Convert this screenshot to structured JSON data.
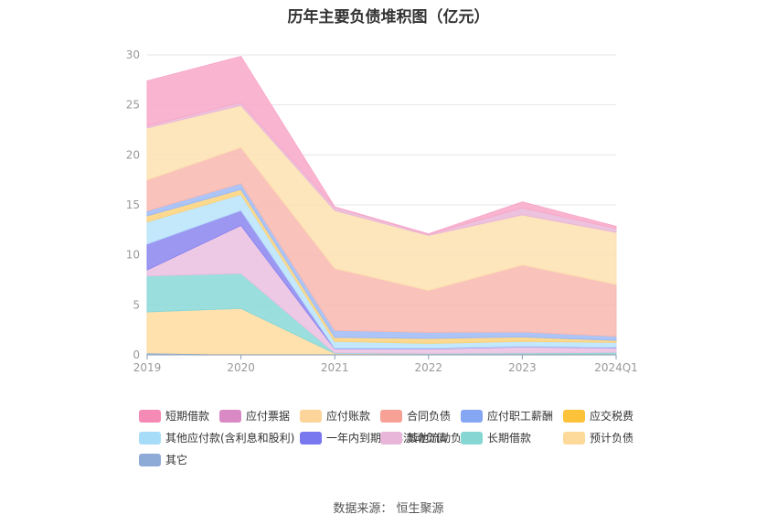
{
  "title": "历年主要负债堆积图（亿元）",
  "source": "数据来源：  恒生聚源",
  "chart_data": {
    "type": "area",
    "stacked": true,
    "categories": [
      "2019",
      "2020",
      "2021",
      "2022",
      "2023",
      "2024Q1"
    ],
    "y_ticks": [
      "0",
      "5",
      "10",
      "15",
      "20",
      "25",
      "30"
    ],
    "ylim": [
      0,
      30
    ],
    "grid": true,
    "legend_position": "bottom",
    "series": [
      {
        "name": "其它",
        "color": "#8eb1dc",
        "values": [
          0.2,
          0.05,
          0.05,
          0.05,
          0.05,
          0.05
        ]
      },
      {
        "name": "预计负债",
        "color": "#ffdca0",
        "values": [
          4.1,
          4.6,
          0.1,
          0.05,
          0.05,
          0.05
        ]
      },
      {
        "name": "长期借款",
        "color": "#8ad8d8",
        "values": [
          3.6,
          3.5,
          0.05,
          0.05,
          0.1,
          0.15
        ]
      },
      {
        "name": "其他流动负债",
        "color": "#ebbfe0",
        "values": [
          0.6,
          4.8,
          0.4,
          0.45,
          0.6,
          0.45
        ]
      },
      {
        "name": "一年内到期的非流动负债",
        "color": "#8b86f0",
        "values": [
          2.6,
          1.5,
          0.05,
          0.05,
          0.05,
          0.05
        ]
      },
      {
        "name": "其他应付款(含利息和股利)",
        "color": "#b9e3fa",
        "values": [
          2.2,
          1.6,
          0.7,
          0.5,
          0.5,
          0.5
        ]
      },
      {
        "name": "应交税费",
        "color": "#fbd27a",
        "values": [
          0.6,
          0.5,
          0.4,
          0.5,
          0.45,
          0.2
        ]
      },
      {
        "name": "应付职工薪酬",
        "color": "#9dbaf5",
        "values": [
          0.5,
          0.6,
          0.7,
          0.6,
          0.5,
          0.4
        ]
      },
      {
        "name": "合同负债",
        "color": "#f8b8b0",
        "values": [
          3.1,
          3.6,
          6.2,
          4.2,
          6.7,
          5.2
        ]
      },
      {
        "name": "应付账款",
        "color": "#fde0b0",
        "values": [
          5.2,
          4.2,
          5.8,
          5.5,
          5.0,
          5.2
        ]
      },
      {
        "name": "应付票据",
        "color": "#eab7d8",
        "values": [
          0.2,
          0.3,
          0.3,
          0.1,
          0.7,
          0.4
        ]
      },
      {
        "name": "短期借款",
        "color": "#f8a8c8",
        "values": [
          4.5,
          4.6,
          0.05,
          0.05,
          0.6,
          0.2
        ]
      }
    ]
  },
  "legend": [
    {
      "name": "短期借款",
      "color": "#f58ab4"
    },
    {
      "name": "应付票据",
      "color": "#d98ac4"
    },
    {
      "name": "应付账款",
      "color": "#fdd49a"
    },
    {
      "name": "合同负债",
      "color": "#f7a196"
    },
    {
      "name": "应付职工薪酬",
      "color": "#85a6f2"
    },
    {
      "name": "应交税费",
      "color": "#fbc23a"
    },
    {
      "name": "其他应付款(含利息和股利)",
      "color": "#a6dcf7"
    },
    {
      "name": "一年内到期的非流动负债",
      "color": "#7a78ee"
    },
    {
      "name": "其他流动负债",
      "color": "#e8b6d8"
    },
    {
      "name": "长期借款",
      "color": "#86d6d4"
    },
    {
      "name": "预计负债",
      "color": "#fdd99a"
    },
    {
      "name": "其它",
      "color": "#8eabd8"
    }
  ]
}
